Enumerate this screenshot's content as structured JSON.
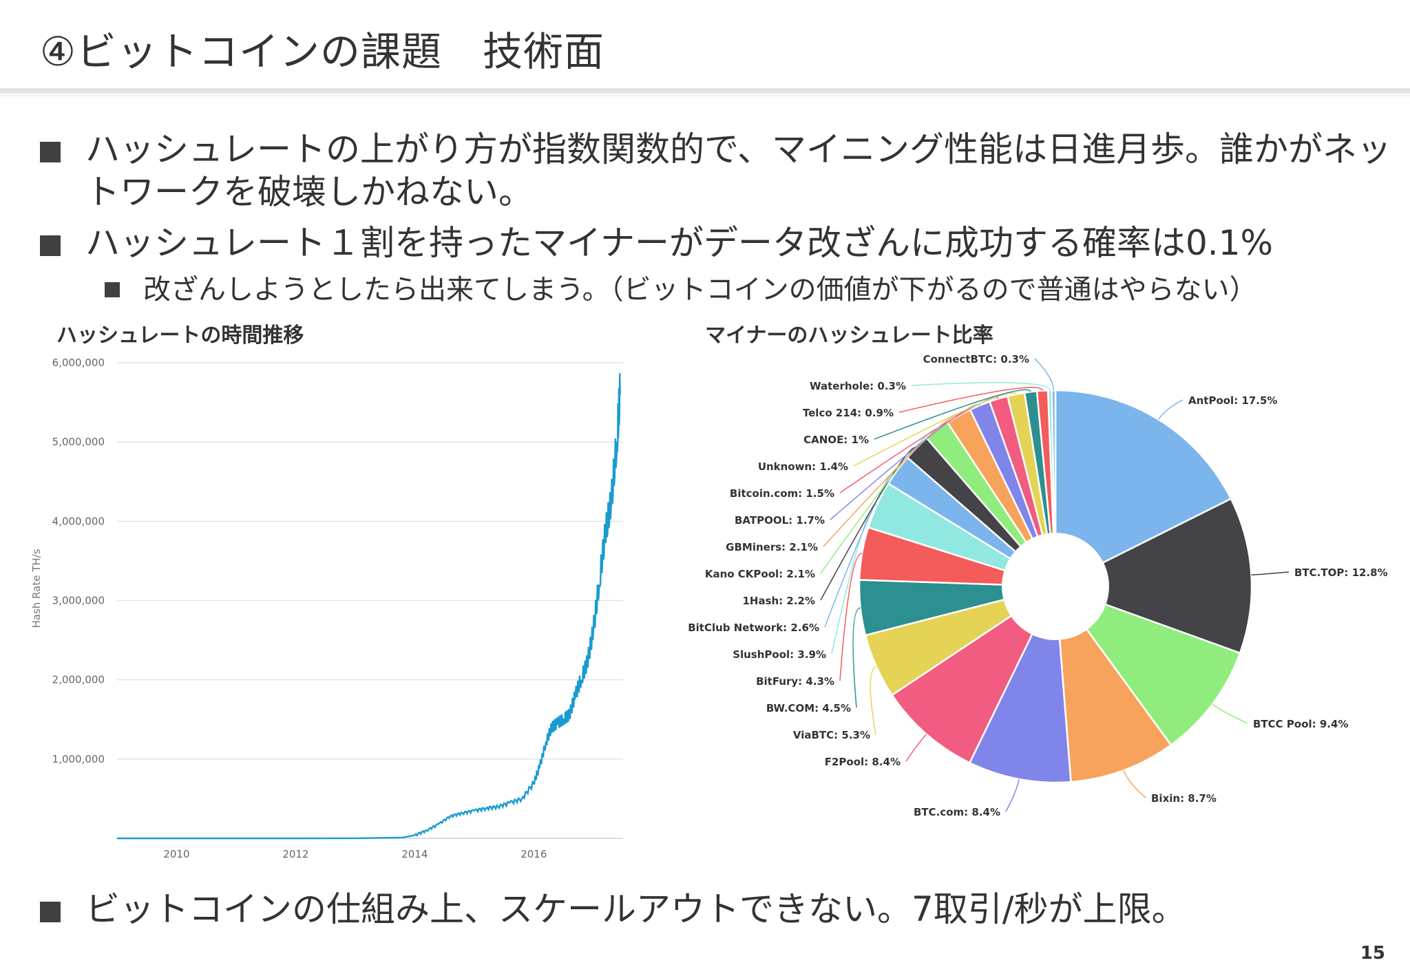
{
  "slide": {
    "title": "④ビットコインの課題　技術面",
    "page_number": "15"
  },
  "bullets": [
    {
      "text": "ハッシュレートの上がり方が指数関数的で、マイニング性能は日進月歩。誰かがネットワークを破壊しかねない。"
    },
    {
      "text": "ハッシュレート１割を持ったマイナーがデータ改ざんに成功する確率は0.1%"
    },
    {
      "text": "ビットコインの仕組み上、スケールアウトできない。7取引/秒が上限。"
    }
  ],
  "sub_bullets": [
    {
      "text": "改ざんしようとしたら出来てしまう。（ビットコインの価値が下がるので普通はやらない）"
    }
  ],
  "chart_data": [
    {
      "type": "line",
      "title": "ハッシュレートの時間推移",
      "ylabel": "Hash Rate TH/s",
      "xlabel": "",
      "xlim": [
        2009,
        2017.5
      ],
      "ylim": [
        0,
        6000000
      ],
      "x_ticks": [
        "2010",
        "2012",
        "2014",
        "2016"
      ],
      "y_ticks": [
        "1,000,000",
        "2,000,000",
        "3,000,000",
        "4,000,000",
        "5,000,000",
        "6,000,000"
      ],
      "grid": true,
      "series": [
        {
          "color": "#1a9bd0",
          "x": [
            2009.0,
            2010.0,
            2011.0,
            2012.0,
            2013.0,
            2013.8,
            2014.0,
            2014.2,
            2014.4,
            2014.6,
            2014.8,
            2015.0,
            2015.2,
            2015.4,
            2015.6,
            2015.8,
            2016.0,
            2016.1,
            2016.2,
            2016.3,
            2016.4,
            2016.5,
            2016.6,
            2016.7,
            2016.8,
            2016.9,
            2017.0,
            2017.1,
            2017.2,
            2017.3,
            2017.4,
            2017.45
          ],
          "y": [
            0,
            0,
            0,
            0,
            1000,
            10000,
            40000,
            100000,
            180000,
            280000,
            320000,
            350000,
            380000,
            400000,
            450000,
            500000,
            700000,
            900000,
            1200000,
            1400000,
            1450000,
            1500000,
            1550000,
            1800000,
            2000000,
            2200000,
            2600000,
            3200000,
            3800000,
            4200000,
            5000000,
            5600000
          ]
        }
      ]
    },
    {
      "type": "pie",
      "title": "マイナーのハッシュレート比率",
      "donut": true,
      "labels": [
        "AntPool",
        "BTC.TOP",
        "BTCC Pool",
        "Bixin",
        "BTC.com",
        "F2Pool",
        "ViaBTC",
        "BW.COM",
        "BitFury",
        "SlushPool",
        "BitClub Network",
        "1Hash",
        "Kano CKPool",
        "GBMiners",
        "BATPOOL",
        "Bitcoin.com",
        "Unknown",
        "CANOE",
        "Telco 214",
        "Waterhole",
        "ConnectBTC"
      ],
      "display_labels": [
        "AntPool: 17.5%",
        "BTC.TOP: 12.8%",
        "BTCC Pool: 9.4%",
        "Bixin: 8.7%",
        "BTC.com: 8.4%",
        "F2Pool: 8.4%",
        "ViaBTC: 5.3%",
        "BW.COM: 4.5%",
        "BitFury: 4.3%",
        "SlushPool: 3.9%",
        "BitClub Network: 2.6%",
        "1Hash: 2.2%",
        "Kano CKPool: 2.1%",
        "GBMiners: 2.1%",
        "BATPOOL: 1.7%",
        "Bitcoin.com: 1.5%",
        "Unknown: 1.4%",
        "CANOE: 1%",
        "Telco 214: 0.9%",
        "Waterhole: 0.3%",
        "ConnectBTC: 0.3%"
      ],
      "values": [
        17.5,
        12.8,
        9.4,
        8.7,
        8.4,
        8.4,
        5.3,
        4.5,
        4.3,
        3.9,
        2.6,
        2.2,
        2.1,
        2.1,
        1.7,
        1.5,
        1.4,
        1.0,
        0.9,
        0.3,
        0.3
      ],
      "colors": [
        "#7cb5ec",
        "#434348",
        "#90ed7d",
        "#f7a35c",
        "#8085e9",
        "#f15c80",
        "#e4d354",
        "#2b908f",
        "#f45b5b",
        "#91e8e1",
        "#7cb5ec",
        "#434348",
        "#90ed7d",
        "#f7a35c",
        "#8085e9",
        "#f15c80",
        "#e4d354",
        "#2b908f",
        "#f45b5b",
        "#91e8e1",
        "#7cb5ec"
      ]
    }
  ]
}
